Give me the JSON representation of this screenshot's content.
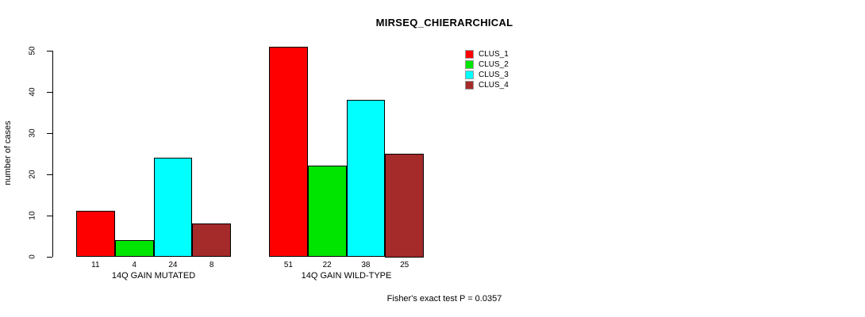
{
  "chart_data": {
    "type": "bar",
    "title": "MIRSEQ_CHIERARCHICAL",
    "ylabel": "number of cases",
    "xlabel": "",
    "categories": [
      "14Q GAIN MUTATED",
      "14Q GAIN WILD-TYPE"
    ],
    "series": [
      {
        "name": "CLUS_1",
        "color": "#FF0000",
        "values": [
          11,
          51
        ]
      },
      {
        "name": "CLUS_2",
        "color": "#00E500",
        "values": [
          4,
          22
        ]
      },
      {
        "name": "CLUS_3",
        "color": "#00FFFF",
        "values": [
          24,
          38
        ]
      },
      {
        "name": "CLUS_4",
        "color": "#A52A2A",
        "values": [
          8,
          25
        ]
      }
    ],
    "bar_value_labels": {
      "14Q GAIN MUTATED": [
        11,
        4,
        24,
        8
      ],
      "14Q GAIN WILD-TYPE": [
        51,
        22,
        38,
        25
      ]
    },
    "yticks": [
      0,
      10,
      20,
      30,
      40,
      50
    ],
    "ylim": [
      0,
      52
    ],
    "grid": false,
    "legend_position": "top-right",
    "annotation": "Fisher's exact test P = 0.0357"
  },
  "colors": {
    "background": "#FFFFFF",
    "axis": "#000000",
    "text": "#000000",
    "bar_border": "#000000"
  }
}
